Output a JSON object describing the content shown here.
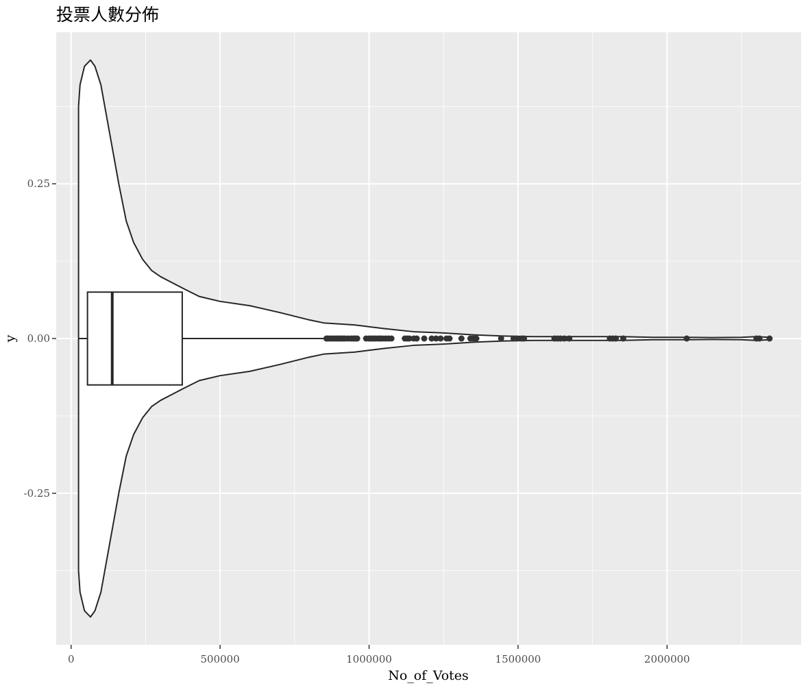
{
  "chart_data": {
    "type": "violin",
    "title": "投票人數分佈",
    "xlabel": "No_of_Votes",
    "ylabel": "y",
    "xlim": [
      -50000,
      2450000
    ],
    "ylim": [
      -0.495,
      0.495
    ],
    "x_ticks": [
      {
        "value": 0,
        "label": "0"
      },
      {
        "value": 500000,
        "label": "500000"
      },
      {
        "value": 1000000,
        "label": "1000000"
      },
      {
        "value": 1500000,
        "label": "1500000"
      },
      {
        "value": 2000000,
        "label": "2000000"
      }
    ],
    "y_ticks": [
      {
        "value": -0.25,
        "label": "-0.25"
      },
      {
        "value": 0,
        "label": "0.00"
      },
      {
        "value": 0.25,
        "label": "0.25"
      }
    ],
    "grid": true,
    "violin": {
      "x_min": 25000,
      "x_max": 2344000,
      "half_width": [
        [
          25000,
          0.375
        ],
        [
          30000,
          0.41
        ],
        [
          45000,
          0.44
        ],
        [
          65000,
          0.45
        ],
        [
          80000,
          0.44
        ],
        [
          100000,
          0.41
        ],
        [
          130000,
          0.33
        ],
        [
          160000,
          0.25
        ],
        [
          185000,
          0.19
        ],
        [
          210000,
          0.155
        ],
        [
          240000,
          0.128
        ],
        [
          270000,
          0.11
        ],
        [
          300000,
          0.1
        ],
        [
          340000,
          0.09
        ],
        [
          380000,
          0.08
        ],
        [
          430000,
          0.068
        ],
        [
          500000,
          0.06
        ],
        [
          600000,
          0.053
        ],
        [
          700000,
          0.042
        ],
        [
          800000,
          0.03
        ],
        [
          850000,
          0.025
        ],
        [
          950000,
          0.022
        ],
        [
          1050000,
          0.016
        ],
        [
          1150000,
          0.011
        ],
        [
          1250000,
          0.009
        ],
        [
          1350000,
          0.006
        ],
        [
          1450000,
          0.004
        ],
        [
          1550000,
          0.003
        ],
        [
          1650000,
          0.003
        ],
        [
          1750000,
          0.003
        ],
        [
          1850000,
          0.003
        ],
        [
          1950000,
          0.002
        ],
        [
          2050000,
          0.002
        ],
        [
          2150000,
          0.0015
        ],
        [
          2250000,
          0.002
        ],
        [
          2300000,
          0.003
        ],
        [
          2344000,
          0.002
        ]
      ]
    },
    "boxplot": {
      "whisker_low": 25000,
      "q1": 55000,
      "median": 138000,
      "q3": 373000,
      "whisker_high": 850000,
      "box_half_height": 0.075
    },
    "outliers": [
      857000,
      862000,
      870000,
      878000,
      886000,
      893000,
      900000,
      907000,
      913000,
      920000,
      930000,
      940000,
      947000,
      953000,
      960000,
      990000,
      1000000,
      1008000,
      1015000,
      1022000,
      1030000,
      1037000,
      1045000,
      1055000,
      1065000,
      1075000,
      1120000,
      1128000,
      1135000,
      1150000,
      1160000,
      1185000,
      1210000,
      1225000,
      1240000,
      1260000,
      1270000,
      1310000,
      1340000,
      1350000,
      1360000,
      1443000,
      1485000,
      1495000,
      1512000,
      1520000,
      1622000,
      1632000,
      1642000,
      1655000,
      1672000,
      1808000,
      1818000,
      1828000,
      1853000,
      2066000,
      2300000,
      2310000,
      2344000
    ]
  }
}
